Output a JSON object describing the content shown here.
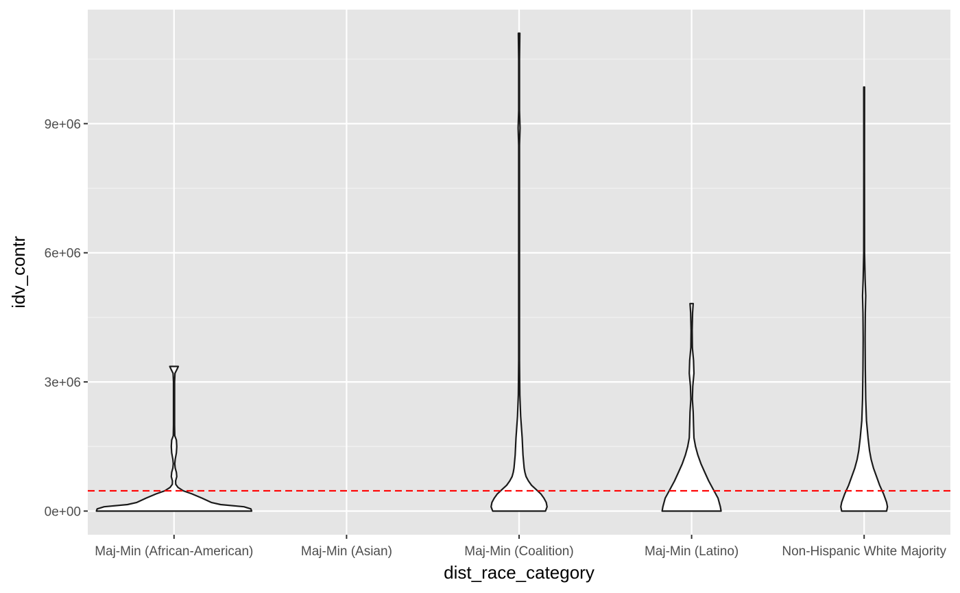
{
  "chart_data": {
    "type": "violin",
    "title": "",
    "xlabel": "dist_race_category",
    "ylabel": "idv_contr",
    "categories": [
      "Maj-Min (African-American)",
      "Maj-Min (Asian)",
      "Maj-Min (Coalition)",
      "Maj-Min (Latino)",
      "Non-Hispanic White Majority"
    ],
    "ylim": [
      -550000,
      11650000
    ],
    "y_ticks": [
      {
        "value": 0,
        "label": "0e+00"
      },
      {
        "value": 3000000,
        "label": "3e+06"
      },
      {
        "value": 6000000,
        "label": "6e+06"
      },
      {
        "value": 9000000,
        "label": "9e+06"
      }
    ],
    "grid": true,
    "reference_line": {
      "y": 470000,
      "style": "dashed",
      "color": "#ff0000"
    },
    "colors": {
      "panel": "#e5e5e5",
      "grid_major": "#ffffff",
      "grid_minor": "#f2f2f2",
      "violin_fill": "#ffffff",
      "violin_stroke": "#1a1a1a"
    },
    "violins": [
      {
        "category": "Maj-Min (African-American)",
        "profile": [
          [
            0,
            1.0
          ],
          [
            50000,
            0.99
          ],
          [
            100000,
            0.9
          ],
          [
            150000,
            0.6
          ],
          [
            200000,
            0.48
          ],
          [
            300000,
            0.36
          ],
          [
            400000,
            0.23
          ],
          [
            470000,
            0.12
          ],
          [
            550000,
            0.05
          ],
          [
            620000,
            0.022
          ],
          [
            700000,
            0.02
          ],
          [
            800000,
            0.035
          ],
          [
            900000,
            0.03
          ],
          [
            1000000,
            0.015
          ],
          [
            1100000,
            0.01
          ],
          [
            1200000,
            0.015
          ],
          [
            1350000,
            0.03
          ],
          [
            1500000,
            0.035
          ],
          [
            1650000,
            0.03
          ],
          [
            1750000,
            0.01
          ],
          [
            2000000,
            0.007
          ],
          [
            2500000,
            0.007
          ],
          [
            3000000,
            0.007
          ],
          [
            3200000,
            0.012
          ],
          [
            3300000,
            0.04
          ],
          [
            3360000,
            0.055
          ]
        ]
      },
      {
        "category": "Maj-Min (Asian)",
        "profile": []
      },
      {
        "category": "Maj-Min (Coalition)",
        "profile": [
          [
            0,
            0.34
          ],
          [
            100000,
            0.36
          ],
          [
            200000,
            0.35
          ],
          [
            300000,
            0.32
          ],
          [
            400000,
            0.28
          ],
          [
            500000,
            0.22
          ],
          [
            600000,
            0.16
          ],
          [
            700000,
            0.12
          ],
          [
            800000,
            0.09
          ],
          [
            900000,
            0.075
          ],
          [
            1000000,
            0.065
          ],
          [
            1300000,
            0.05
          ],
          [
            1700000,
            0.04
          ],
          [
            2200000,
            0.02
          ],
          [
            2700000,
            0.01
          ],
          [
            3500000,
            0.005
          ],
          [
            6000000,
            0.005
          ],
          [
            8500000,
            0.005
          ],
          [
            8900000,
            0.012
          ],
          [
            9300000,
            0.005
          ],
          [
            10500000,
            0.005
          ],
          [
            11100000,
            0.01
          ]
        ]
      },
      {
        "category": "Maj-Min (Latino)",
        "profile": [
          [
            0,
            0.38
          ],
          [
            100000,
            0.37
          ],
          [
            300000,
            0.34
          ],
          [
            500000,
            0.28
          ],
          [
            700000,
            0.22
          ],
          [
            900000,
            0.17
          ],
          [
            1100000,
            0.12
          ],
          [
            1300000,
            0.08
          ],
          [
            1500000,
            0.05
          ],
          [
            1700000,
            0.03
          ],
          [
            2000000,
            0.025
          ],
          [
            2300000,
            0.02
          ],
          [
            2600000,
            0.01
          ],
          [
            2900000,
            0.015
          ],
          [
            3200000,
            0.03
          ],
          [
            3500000,
            0.025
          ],
          [
            3800000,
            0.01
          ],
          [
            4200000,
            0.007
          ],
          [
            4600000,
            0.012
          ],
          [
            4820000,
            0.02
          ]
        ]
      },
      {
        "category": "Non-Hispanic White Majority",
        "profile": [
          [
            0,
            0.29
          ],
          [
            100000,
            0.3
          ],
          [
            200000,
            0.29
          ],
          [
            400000,
            0.25
          ],
          [
            600000,
            0.2
          ],
          [
            800000,
            0.16
          ],
          [
            1000000,
            0.12
          ],
          [
            1200000,
            0.09
          ],
          [
            1400000,
            0.07
          ],
          [
            1700000,
            0.05
          ],
          [
            2100000,
            0.03
          ],
          [
            2600000,
            0.02
          ],
          [
            3300000,
            0.015
          ],
          [
            4000000,
            0.012
          ],
          [
            4600000,
            0.015
          ],
          [
            5000000,
            0.02
          ],
          [
            5400000,
            0.012
          ],
          [
            6000000,
            0.005
          ],
          [
            8000000,
            0.004
          ],
          [
            9850000,
            0.005
          ]
        ]
      }
    ]
  }
}
